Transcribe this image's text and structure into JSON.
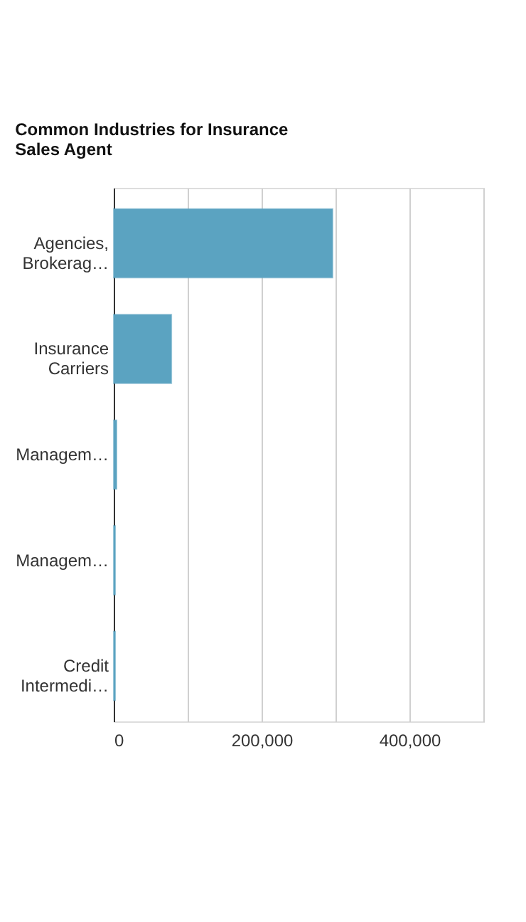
{
  "chart_data": {
    "type": "bar",
    "orientation": "horizontal",
    "title": "Common Industries for Insurance Sales Agent",
    "categories": [
      "Agencies, Brokerag…",
      "Insurance Carriers",
      "Managem…",
      "Managem…",
      "Credit Intermedi…"
    ],
    "values": [
      296000,
      78000,
      3800,
      2000,
      2000
    ],
    "color": "#5ba3c1",
    "xlim": [
      0,
      500000
    ],
    "xticks": [
      0,
      {
        "value": 100000,
        "label": null
      },
      "200,000",
      {
        "value": 300000,
        "label": null
      },
      {
        "value": 400000,
        "label": "400,000"
      },
      {
        "value": 500000,
        "label": null
      }
    ],
    "grid": "x"
  }
}
